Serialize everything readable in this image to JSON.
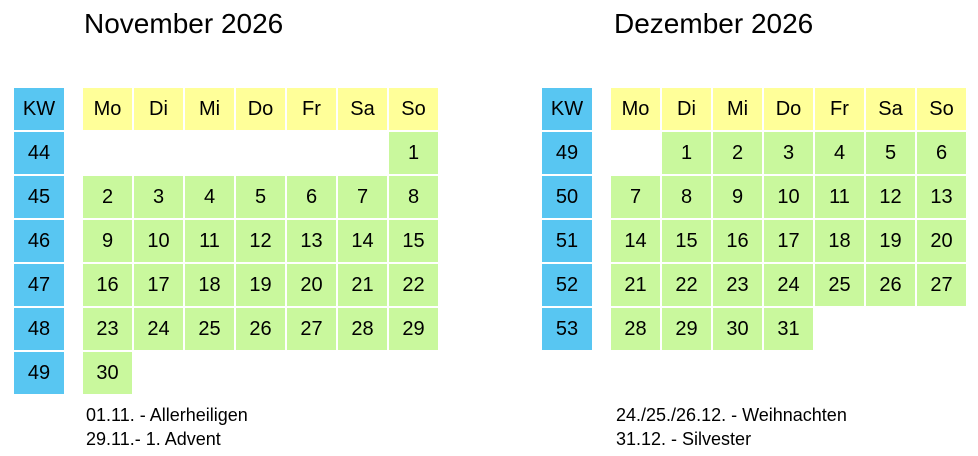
{
  "colors": {
    "kw_bg": "#58C6F2",
    "header_bg": "#FFFF99",
    "day_bg": "#C9F89D",
    "text": "#000000",
    "background": "#FFFFFF"
  },
  "months": [
    {
      "title": "November 2026",
      "kw_label": "KW",
      "day_headers": [
        "Mo",
        "Di",
        "Mi",
        "Do",
        "Fr",
        "Sa",
        "So"
      ],
      "weeks": [
        {
          "kw": "44",
          "days": [
            "",
            "",
            "",
            "",
            "",
            "",
            "1"
          ]
        },
        {
          "kw": "45",
          "days": [
            "2",
            "3",
            "4",
            "5",
            "6",
            "7",
            "8"
          ]
        },
        {
          "kw": "46",
          "days": [
            "9",
            "10",
            "11",
            "12",
            "13",
            "14",
            "15"
          ]
        },
        {
          "kw": "47",
          "days": [
            "16",
            "17",
            "18",
            "19",
            "20",
            "21",
            "22"
          ]
        },
        {
          "kw": "48",
          "days": [
            "23",
            "24",
            "25",
            "26",
            "27",
            "28",
            "29"
          ]
        },
        {
          "kw": "49",
          "days": [
            "30",
            "",
            "",
            "",
            "",
            "",
            ""
          ]
        }
      ],
      "notes": [
        "01.11. - Allerheiligen",
        "29.11.- 1. Advent"
      ]
    },
    {
      "title": "Dezember 2026",
      "kw_label": "KW",
      "day_headers": [
        "Mo",
        "Di",
        "Mi",
        "Do",
        "Fr",
        "Sa",
        "So"
      ],
      "weeks": [
        {
          "kw": "49",
          "days": [
            "",
            "1",
            "2",
            "3",
            "4",
            "5",
            "6"
          ]
        },
        {
          "kw": "50",
          "days": [
            "7",
            "8",
            "9",
            "10",
            "11",
            "12",
            "13"
          ]
        },
        {
          "kw": "51",
          "days": [
            "14",
            "15",
            "16",
            "17",
            "18",
            "19",
            "20"
          ]
        },
        {
          "kw": "52",
          "days": [
            "21",
            "22",
            "23",
            "24",
            "25",
            "26",
            "27"
          ]
        },
        {
          "kw": "53",
          "days": [
            "28",
            "29",
            "30",
            "31",
            "",
            "",
            ""
          ]
        }
      ],
      "notes": [
        "24./25./26.12. - Weihnachten",
        "31.12. - Silvester"
      ]
    }
  ]
}
